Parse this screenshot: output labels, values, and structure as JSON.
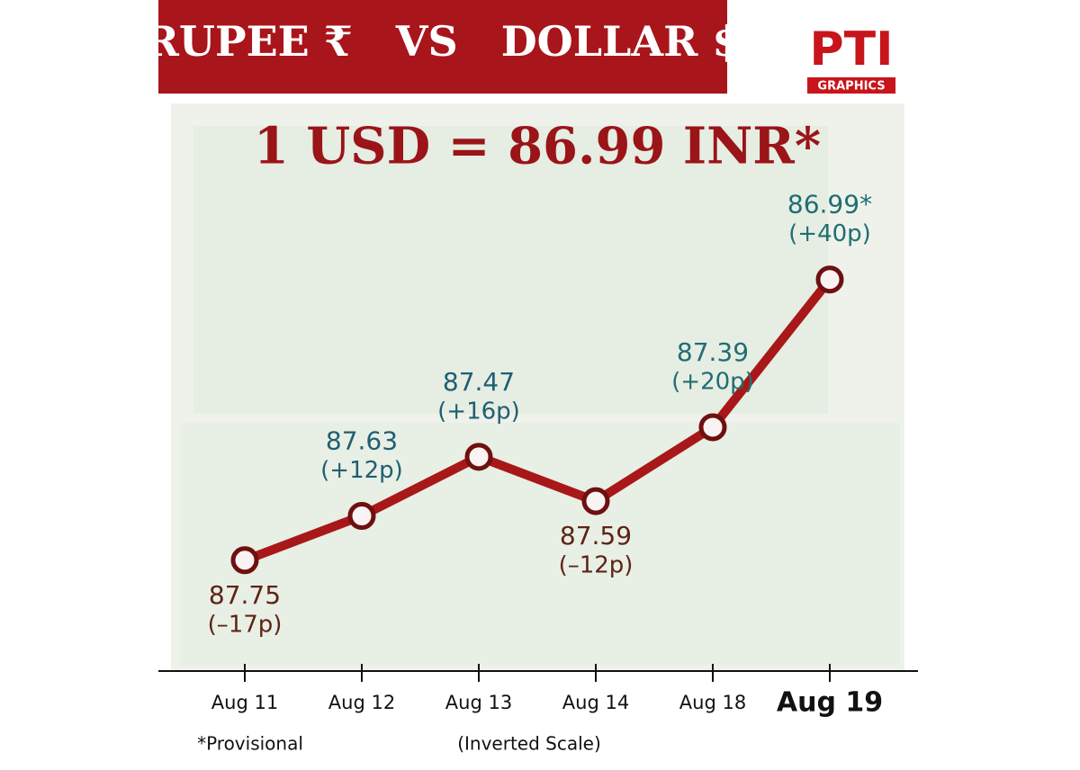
{
  "chart_data": {
    "type": "line",
    "title": "RUPEE ₹   VS   DOLLAR $",
    "headline": "1 USD = 86.99 INR*",
    "logo": "PTI",
    "logo_sub": "GRAPHICS",
    "categories": [
      "Aug 11",
      "Aug 12",
      "Aug 13",
      "Aug 14",
      "Aug 18",
      "Aug 19"
    ],
    "values": [
      87.75,
      87.63,
      87.47,
      87.59,
      87.39,
      86.99
    ],
    "value_labels": [
      "87.75",
      "87.63",
      "87.47",
      "87.59",
      "87.39",
      "86.99*"
    ],
    "change_labels": [
      "(–17p)",
      "(+12p)",
      "(+16p)",
      "(–12p)",
      "(+20p)",
      "(+40p)"
    ],
    "label_colors": [
      "#5e2414",
      "#1f5f73",
      "#1f5f73",
      "#5e2414",
      "#1f6e73",
      "#1f6e73"
    ],
    "color": "#a81818",
    "ylim": [
      88.05,
      86.55
    ],
    "inverted": true,
    "footnote": "*Provisional",
    "scale_note": "(Inverted Scale)"
  }
}
